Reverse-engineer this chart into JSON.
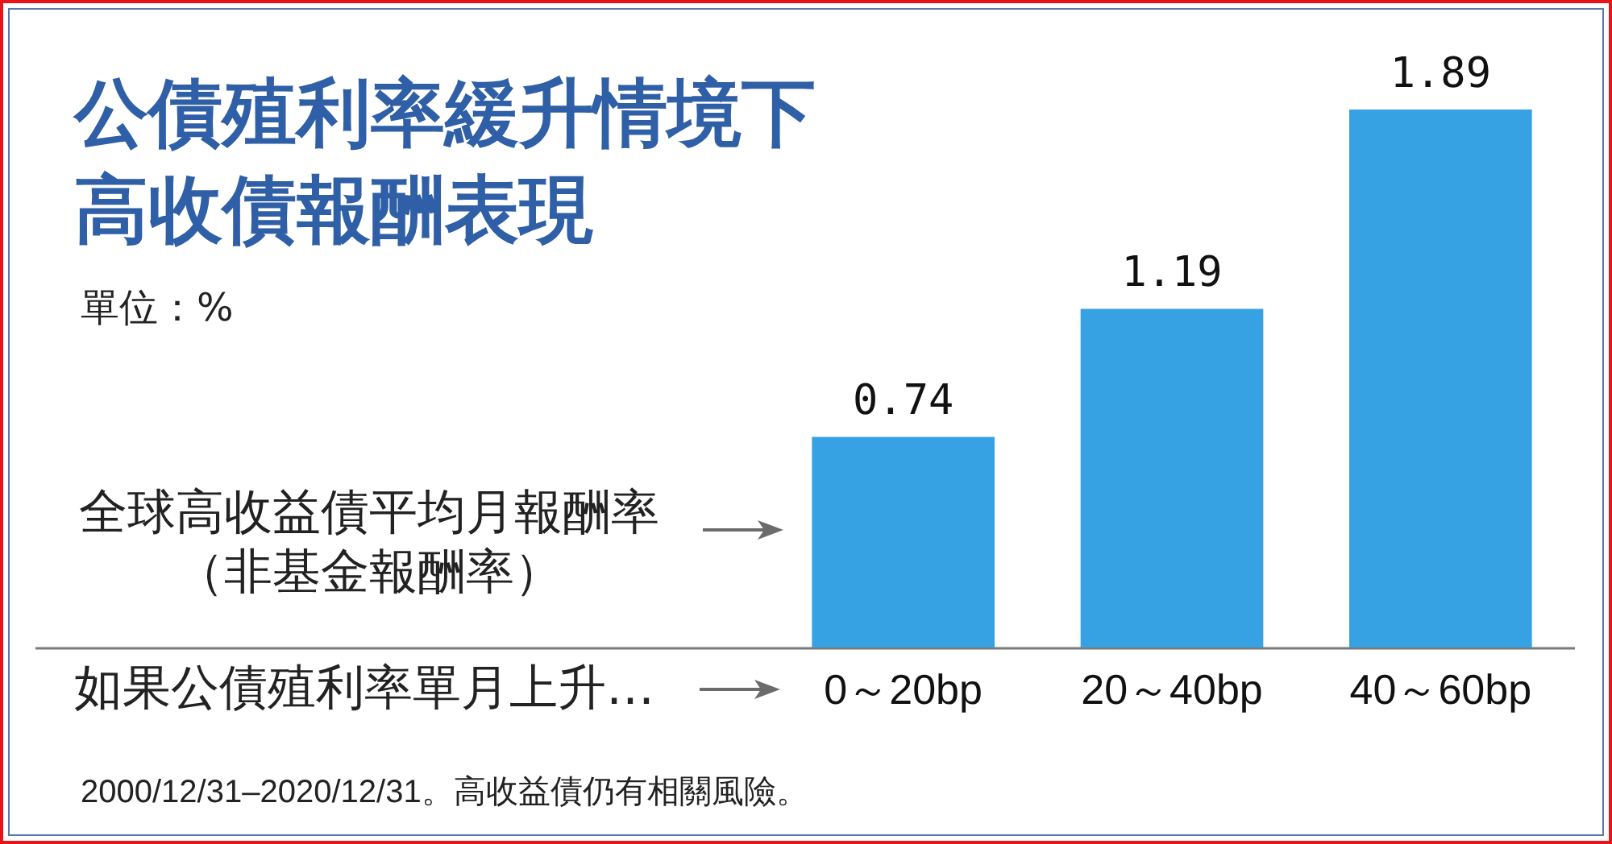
{
  "chart_data": {
    "type": "bar",
    "title": "公債殖利率緩升情境下高收債報酬表現",
    "subtitle": "單位：%",
    "xlabel": "如果公債殖利率單月上升…",
    "ylabel": "全球高收益債平均月報酬率（非基金報酬率）",
    "categories": [
      "0～20bp",
      "20～40bp",
      "40～60bp"
    ],
    "values": [
      0.74,
      1.19,
      1.89
    ],
    "color": "#36a2e4",
    "data_labels": true,
    "tick_labels": "x",
    "annotations": [
      "2000/12/31–2020/12/31。高收益債仍有相關風險。"
    ]
  }
}
